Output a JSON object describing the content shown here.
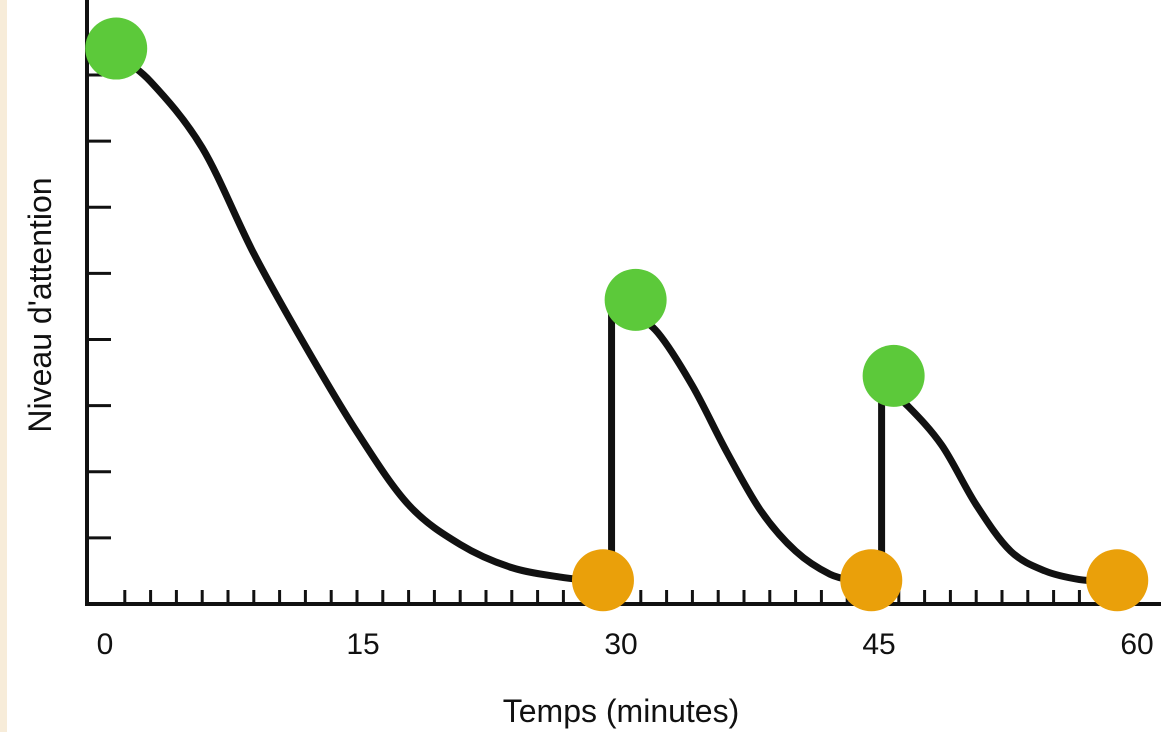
{
  "chart_data": {
    "type": "line",
    "title": "",
    "xlabel": "Temps (minutes)",
    "ylabel": "Niveau d'attention",
    "x_ticks": [
      0,
      15,
      30,
      45,
      60
    ],
    "xlim": [
      0,
      60
    ],
    "ylim": [
      0,
      8
    ],
    "grid": false,
    "minor_x_tick_step": 1.5,
    "y_tick_count": 8,
    "curve_segments": [
      {
        "points": [
          [
            1,
            8.3
          ],
          [
            3,
            7.9
          ],
          [
            6,
            6.9
          ],
          [
            9,
            5.3
          ],
          [
            12,
            3.9
          ],
          [
            15,
            2.6
          ],
          [
            18,
            1.5
          ],
          [
            21,
            0.9
          ],
          [
            24,
            0.55
          ],
          [
            27,
            0.4
          ],
          [
            29,
            0.35
          ]
        ]
      },
      {
        "points": [
          [
            31,
            4.4
          ],
          [
            32.5,
            4.1
          ],
          [
            34.5,
            3.3
          ],
          [
            36.5,
            2.3
          ],
          [
            38.5,
            1.4
          ],
          [
            40.5,
            0.8
          ],
          [
            42.5,
            0.45
          ],
          [
            44,
            0.35
          ]
        ]
      },
      {
        "points": [
          [
            45.6,
            3.3
          ],
          [
            47,
            3.0
          ],
          [
            49,
            2.4
          ],
          [
            51,
            1.5
          ],
          [
            53,
            0.8
          ],
          [
            55,
            0.5
          ],
          [
            57,
            0.37
          ],
          [
            58.5,
            0.35
          ]
        ]
      }
    ],
    "jumps": [
      {
        "x": 29.8,
        "from": 0.35,
        "to": 4.4
      },
      {
        "x": 45.5,
        "from": 0.35,
        "to": 3.3
      }
    ],
    "high_points": [
      {
        "x": 1,
        "y": 8.4
      },
      {
        "x": 31.2,
        "y": 4.6
      },
      {
        "x": 46.2,
        "y": 3.45
      }
    ],
    "low_points": [
      {
        "x": 29.3,
        "y": 0.36
      },
      {
        "x": 44.9,
        "y": 0.36
      },
      {
        "x": 59.2,
        "y": 0.36
      }
    ],
    "colors": {
      "line": "#111111",
      "high_point": "#5cc93a",
      "low_point": "#eaa00a",
      "axis": "#111111"
    }
  }
}
